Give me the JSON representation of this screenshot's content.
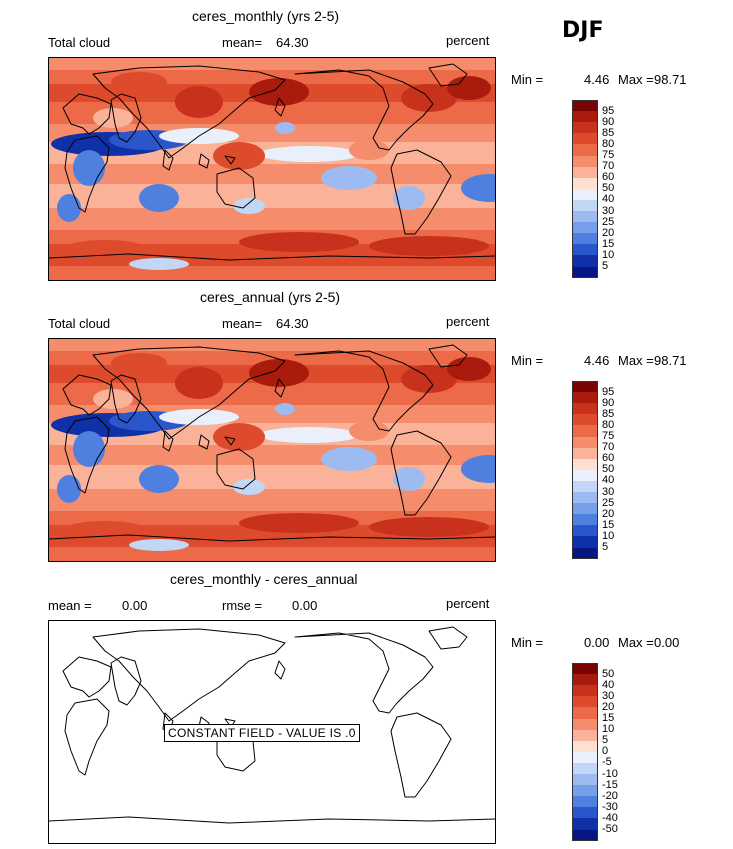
{
  "season": "DJF",
  "panels": [
    {
      "title": "ceres_monthly (yrs 2-5)",
      "left_label": "Total cloud",
      "stat_label": "mean=",
      "stat_value": "64.30",
      "units": "percent",
      "min_label": "Min =",
      "min_value": "4.46",
      "max_label": "Max =",
      "max_value": "98.71",
      "colorbar_ticks": [
        "95",
        "90",
        "85",
        "80",
        "75",
        "70",
        "60",
        "50",
        "40",
        "30",
        "25",
        "20",
        "15",
        "10",
        "5"
      ]
    },
    {
      "title": "ceres_annual (yrs 2-5)",
      "left_label": "Total cloud",
      "stat_label": "mean=",
      "stat_value": "64.30",
      "units": "percent",
      "min_label": "Min =",
      "min_value": "4.46",
      "max_label": "Max =",
      "max_value": "98.71",
      "colorbar_ticks": [
        "95",
        "90",
        "85",
        "80",
        "75",
        "70",
        "60",
        "50",
        "40",
        "30",
        "25",
        "20",
        "15",
        "10",
        "5"
      ]
    },
    {
      "title": "ceres_monthly - ceres_annual",
      "mean_label": "mean =",
      "mean_value": "0.00",
      "rmse_label": "rmse =",
      "rmse_value": "0.00",
      "units": "percent",
      "min_label": "Min =",
      "min_value": "0.00",
      "max_label": "Max =",
      "max_value": "0.00",
      "colorbar_ticks": [
        "50",
        "40",
        "30",
        "20",
        "15",
        "10",
        "5",
        "0",
        "-5",
        "-10",
        "-15",
        "-20",
        "-30",
        "-40",
        "-50"
      ],
      "constant_field_text": "CONSTANT FIELD - VALUE IS .0"
    }
  ],
  "palette": [
    "#7a0403",
    "#a91b0d",
    "#c8321c",
    "#de4a2c",
    "#ec6a48",
    "#f58c6c",
    "#fab398",
    "#fde0d0",
    "#eaf0fb",
    "#c2d6f5",
    "#9dbbf0",
    "#779ee8",
    "#4f7fdf",
    "#2a56cc",
    "#1030a8",
    "#061783"
  ],
  "chart_data": [
    {
      "type": "heatmap",
      "title": "ceres_monthly (yrs 2-5)",
      "variable": "Total cloud",
      "units": "percent",
      "season": "DJF",
      "mean": 64.3,
      "min": 4.46,
      "max": 98.71,
      "levels": [
        5,
        10,
        15,
        20,
        25,
        30,
        40,
        50,
        60,
        70,
        75,
        80,
        85,
        90,
        95
      ]
    },
    {
      "type": "heatmap",
      "title": "ceres_annual (yrs 2-5)",
      "variable": "Total cloud",
      "units": "percent",
      "season": "DJF",
      "mean": 64.3,
      "min": 4.46,
      "max": 98.71,
      "levels": [
        5,
        10,
        15,
        20,
        25,
        30,
        40,
        50,
        60,
        70,
        75,
        80,
        85,
        90,
        95
      ]
    },
    {
      "type": "heatmap",
      "title": "ceres_monthly - ceres_annual",
      "units": "percent",
      "season": "DJF",
      "mean": 0.0,
      "rmse": 0.0,
      "min": 0.0,
      "max": 0.0,
      "levels": [
        -50,
        -40,
        -30,
        -20,
        -15,
        -10,
        -5,
        0,
        5,
        10,
        15,
        20,
        30,
        40,
        50
      ]
    }
  ]
}
